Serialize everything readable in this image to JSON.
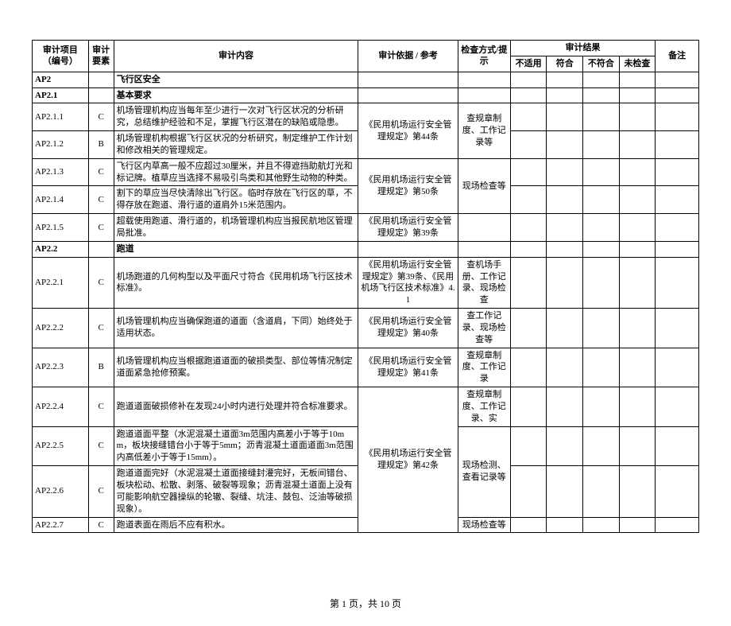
{
  "columns": {
    "col1": "审计项目（编号）",
    "col2": "审计要素",
    "col3": "审计内容",
    "col4": "审计依据 / 参考",
    "col5": "检查方式/提示",
    "result_group": "审计结果",
    "r1": "不适用",
    "r2": "符合",
    "r3": "不符合",
    "r4": "未检查",
    "remark": "备注"
  },
  "widths": {
    "col1": 62,
    "col2": 28,
    "col3": 270,
    "col4": 110,
    "col5": 58,
    "rcell": 40,
    "remark": 48
  },
  "rows": [
    {
      "id": "AP2",
      "elem": "",
      "content": "飞行区安全",
      "basis": "",
      "mode": "",
      "bold": true
    },
    {
      "id": "AP2.1",
      "elem": "",
      "content": "基本要求",
      "basis": "",
      "mode": "",
      "bold": true
    },
    {
      "id": "AP2.1.1",
      "elem": "C",
      "content": "机场管理机构应当每年至少进行一次对飞行区状况的分析研究，总结维护经验和不足，掌握飞行区潜在的缺陷或隐患。",
      "basis_merge_start": true,
      "basis_rows": 2,
      "basis": "《民用机场运行安全管理规定》第44条",
      "mode_merge_start": true,
      "mode_rows": 2,
      "mode": "查规章制度、工作记录等"
    },
    {
      "id": "AP2.1.2",
      "elem": "B",
      "content": "机场管理机构根据飞行区状况的分析研究，制定维护工作计划和修改相关的管理规定。",
      "basis_merged": true,
      "mode_merged": true
    },
    {
      "id": "AP2.1.3",
      "elem": "C",
      "content": "飞行区内草高一般不应超过30厘米，并且不得遮挡助航灯光和标记牌。植草应当选择不易吸引鸟类和其他野生动物的种类。",
      "basis_merge_start": true,
      "basis_rows": 2,
      "basis": "《民用机场运行安全管理规定》第50条",
      "mode_merge_start": true,
      "mode_rows": 2,
      "mode": "现场检查等"
    },
    {
      "id": "AP2.1.4",
      "elem": "C",
      "content": "割下的草应当尽快清除出飞行区。临时存放在飞行区的草，不得存放在跑道、滑行道的道肩外15米范围内。",
      "basis_merged": true,
      "mode_merged": true
    },
    {
      "id": "AP2.1.5",
      "elem": "C",
      "content": "超载使用跑道、滑行道的，机场管理机构应当报民航地区管理局批准。",
      "basis": "《民用机场运行安全管理规定》第39条",
      "mode": ""
    },
    {
      "id": "AP2.2",
      "elem": "",
      "content": "跑道",
      "basis": "",
      "mode": "",
      "bold": true
    },
    {
      "id": "AP2.2.1",
      "elem": "C",
      "content": "机场跑道的几何构型以及平面尺寸符合《民用机场飞行区技术标准》。",
      "basis": "《民用机场运行安全管理规定》第39条、《民用机场飞行区技术标准》4.1",
      "mode": "查机场手册、工作记录、现场检查"
    },
    {
      "id": "AP2.2.2",
      "elem": "C",
      "content": "机场管理机构应当确保跑道的道面（含道肩，下同）始终处于适用状态。",
      "basis": "《民用机场运行安全管理规定》第40条",
      "mode": "查工作记录、现场检查等"
    },
    {
      "id": "AP2.2.3",
      "elem": "B",
      "content": "机场管理机构应当根据跑道道面的破损类型、部位等情况制定道面紧急抢修预案。",
      "basis": "《民用机场运行安全管理规定》第41条",
      "mode": "查规章制度、工作记录"
    },
    {
      "id": "AP2.2.4",
      "elem": "C",
      "content": "跑道道面破损修补在发现24小时内进行处理并符合标准要求。",
      "basis": "",
      "basis_merge_start": true,
      "basis_rows": 4,
      "basis_text_below": "《民用机场运行安全管理规定》第42条",
      "mode": "查规章制度、工作记录、实"
    },
    {
      "id": "AP2.2.5",
      "elem": "C",
      "content": "跑道道面平整（水泥混凝土道面3m范围内高差小于等于10mm，板块接缝错台小于等于5mm；沥青混凝土道面道面3m范围内高低差小于等于15mm）。",
      "basis_merged": true,
      "mode_merge_start": true,
      "mode_rows": 2,
      "mode": "现场检测、查看记录等"
    },
    {
      "id": "AP2.2.6",
      "elem": "C",
      "content": "跑道道面完好（水泥混凝土道面接缝封灌完好，无板间错台、板块松动、松散、剥落、破裂等现象；沥青混凝土道面上没有可能影响航空器操纵的轮辙、裂缝、坑洼、鼓包、泛油等破损现象）。",
      "basis_merged": true,
      "mode_merged": true
    },
    {
      "id": "AP2.2.7",
      "elem": "C",
      "content": "跑道表面在雨后不应有积水。",
      "basis_merged": true,
      "mode": "现场检查等",
      "clip": true
    }
  ],
  "footer": "第 1 页，共 10 页"
}
